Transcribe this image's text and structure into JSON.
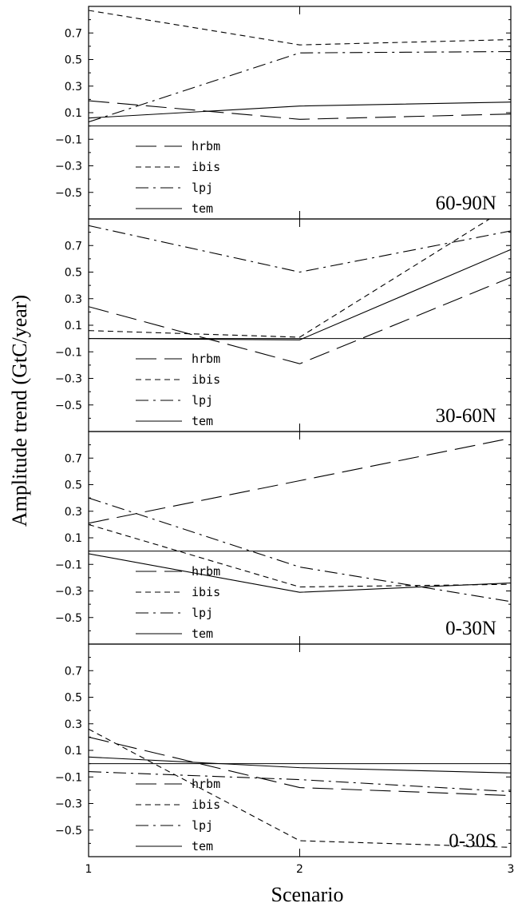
{
  "chart_data": {
    "type": "line",
    "xlabel": "Scenario",
    "ylabel": "Amplitude trend (GtC/year)",
    "x": [
      1,
      2,
      3
    ],
    "xticks": [
      "1",
      "2",
      "3"
    ],
    "ylim": [
      -0.7,
      0.9
    ],
    "yticks": [
      "0.7",
      "0.5",
      "0.3",
      "0.1",
      "−0.1",
      "−0.3",
      "−0.5"
    ],
    "ytick_values": [
      0.7,
      0.5,
      0.3,
      0.1,
      -0.1,
      -0.3,
      -0.5
    ],
    "zero_line": true,
    "grid": false,
    "legend": [
      "hrbm",
      "ibis",
      "lpj",
      "tem"
    ],
    "line_styles": {
      "hrbm": "long-dash",
      "ibis": "short-dash",
      "lpj": "dash-dot",
      "tem": "solid"
    },
    "panels": [
      {
        "region": "60-90N",
        "series": [
          {
            "name": "hrbm",
            "values": [
              0.19,
              0.05,
              0.09
            ]
          },
          {
            "name": "ibis",
            "values": [
              0.87,
              0.61,
              0.65
            ]
          },
          {
            "name": "lpj",
            "values": [
              0.03,
              0.55,
              0.56
            ]
          },
          {
            "name": "tem",
            "values": [
              0.06,
              0.15,
              0.18
            ]
          }
        ]
      },
      {
        "region": "30-60N",
        "series": [
          {
            "name": "hrbm",
            "values": [
              0.24,
              -0.19,
              0.46
            ]
          },
          {
            "name": "ibis",
            "values": [
              0.06,
              0.01,
              1.0
            ]
          },
          {
            "name": "lpj",
            "values": [
              0.85,
              0.5,
              0.81
            ]
          },
          {
            "name": "tem",
            "values": [
              0.0,
              -0.01,
              0.67
            ]
          }
        ]
      },
      {
        "region": "0-30N",
        "series": [
          {
            "name": "hrbm",
            "values": [
              0.21,
              0.53,
              0.85
            ]
          },
          {
            "name": "ibis",
            "values": [
              0.2,
              -0.27,
              -0.25
            ]
          },
          {
            "name": "lpj",
            "values": [
              0.4,
              -0.12,
              -0.38
            ]
          },
          {
            "name": "tem",
            "values": [
              -0.02,
              -0.31,
              -0.24
            ]
          }
        ]
      },
      {
        "region": "0-30S",
        "series": [
          {
            "name": "hrbm",
            "values": [
              0.2,
              -0.18,
              -0.24
            ]
          },
          {
            "name": "ibis",
            "values": [
              0.26,
              -0.58,
              -0.63
            ]
          },
          {
            "name": "lpj",
            "values": [
              -0.06,
              -0.12,
              -0.21
            ]
          },
          {
            "name": "tem",
            "values": [
              0.05,
              -0.03,
              -0.07
            ]
          }
        ]
      }
    ]
  }
}
